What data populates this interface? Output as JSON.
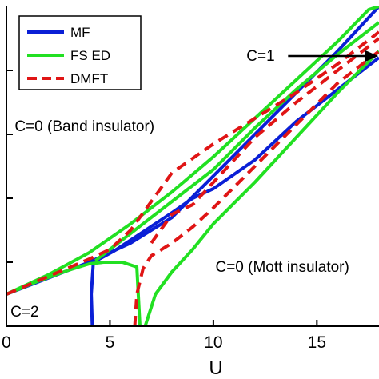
{
  "chart_data": {
    "type": "line",
    "xlabel": "U",
    "ylabel": "",
    "xlim": [
      0,
      18
    ],
    "ylim": [
      0,
      10
    ],
    "x_ticks": [
      0,
      5,
      10,
      15
    ],
    "y_ticks": [
      2,
      4,
      6,
      8
    ],
    "grid": false,
    "legend_position": "top-left",
    "legend": [
      {
        "label": "MF",
        "color": "#0a1fd6",
        "dash": "solid"
      },
      {
        "label": "FS ED",
        "color": "#22e022",
        "dash": "solid"
      },
      {
        "label": "DMFT",
        "color": "#e01515",
        "dash": "dashed"
      }
    ],
    "annotations": [
      {
        "text": "C=0 (Band insulator)",
        "x": 0.4,
        "y": 6.1
      },
      {
        "text": "C=0 (Mott insulator)",
        "x": 10.1,
        "y": 1.7
      },
      {
        "text": "C=2",
        "x": 0.2,
        "y": 0.3
      },
      {
        "text": "C=1",
        "x": 11.6,
        "y": 8.3
      }
    ],
    "series": [
      {
        "name": "MF",
        "color": "#0a1fd6",
        "dash": "solid",
        "segments": [
          [
            [
              0,
              1.0
            ],
            [
              2,
              1.5
            ],
            [
              4,
              2.0
            ],
            [
              6,
              2.6
            ],
            [
              8,
              3.4
            ],
            [
              10,
              4.7
            ],
            [
              12,
              6.0
            ],
            [
              14,
              7.3
            ],
            [
              16,
              8.6
            ],
            [
              18,
              10.0
            ]
          ],
          [
            [
              4.15,
              0.0
            ],
            [
              4.1,
              1.0
            ],
            [
              4.2,
              2.0
            ],
            [
              5.2,
              2.35
            ],
            [
              6.6,
              2.95
            ],
            [
              8,
              3.55
            ],
            [
              9,
              4.0
            ],
            [
              10,
              4.3
            ],
            [
              12,
              5.2
            ],
            [
              14,
              6.4
            ],
            [
              16,
              7.4
            ],
            [
              18,
              8.4
            ]
          ]
        ]
      },
      {
        "name": "FS ED",
        "color": "#22e022",
        "dash": "solid",
        "segments": [
          [
            [
              0,
              1.0
            ],
            [
              2,
              1.6
            ],
            [
              4,
              2.3
            ],
            [
              6,
              3.2
            ],
            [
              8,
              4.2
            ],
            [
              10,
              5.3
            ],
            [
              12,
              6.5
            ],
            [
              14,
              7.7
            ],
            [
              16,
              8.9
            ],
            [
              17.5,
              9.9
            ],
            [
              18,
              10.0
            ]
          ],
          [
            [
              0,
              1.0
            ],
            [
              1.5,
              1.4
            ],
            [
              3,
              1.75
            ],
            [
              4,
              1.95
            ],
            [
              4.7,
              2.0
            ],
            [
              5.6,
              2.0
            ],
            [
              6.3,
              1.85
            ],
            [
              6.45,
              0.0
            ]
          ],
          [
            [
              6.7,
              0.0
            ],
            [
              7.2,
              1.0
            ],
            [
              8,
              1.7
            ],
            [
              9,
              2.4
            ],
            [
              10,
              3.2
            ],
            [
              12,
              4.5
            ],
            [
              14,
              5.9
            ],
            [
              16,
              7.3
            ],
            [
              18,
              8.6
            ]
          ],
          [
            [
              4.3,
              2.05
            ],
            [
              6,
              2.9
            ],
            [
              8,
              3.9
            ],
            [
              10,
              4.9
            ],
            [
              12,
              6.2
            ],
            [
              14,
              7.4
            ],
            [
              16,
              8.5
            ],
            [
              18,
              9.5
            ]
          ]
        ]
      },
      {
        "name": "DMFT",
        "color": "#e01515",
        "dash": "dashed",
        "segments": [
          [
            [
              0,
              1.0
            ],
            [
              2,
              1.55
            ],
            [
              4,
              2.1
            ],
            [
              5,
              2.4
            ],
            [
              6,
              3.0
            ],
            [
              7,
              3.9
            ],
            [
              8,
              4.8
            ],
            [
              10,
              5.7
            ],
            [
              12,
              6.5
            ],
            [
              14,
              7.3
            ],
            [
              16,
              8.2
            ],
            [
              18,
              9.2
            ]
          ],
          [
            [
              6.2,
              0.0
            ],
            [
              6.3,
              1.0
            ],
            [
              6.6,
              1.8
            ],
            [
              7,
              2.2
            ],
            [
              8,
              2.6
            ],
            [
              9,
              3.1
            ],
            [
              10,
              3.7
            ],
            [
              12,
              5.0
            ],
            [
              14,
              6.3
            ],
            [
              16,
              7.6
            ],
            [
              18,
              8.6
            ]
          ],
          [
            [
              7,
              2.6
            ],
            [
              8,
              3.5
            ],
            [
              9,
              3.8
            ],
            [
              10,
              4.5
            ],
            [
              12,
              5.9
            ],
            [
              14,
              7.0
            ],
            [
              16,
              8.0
            ],
            [
              18,
              9.0
            ]
          ]
        ]
      }
    ]
  }
}
